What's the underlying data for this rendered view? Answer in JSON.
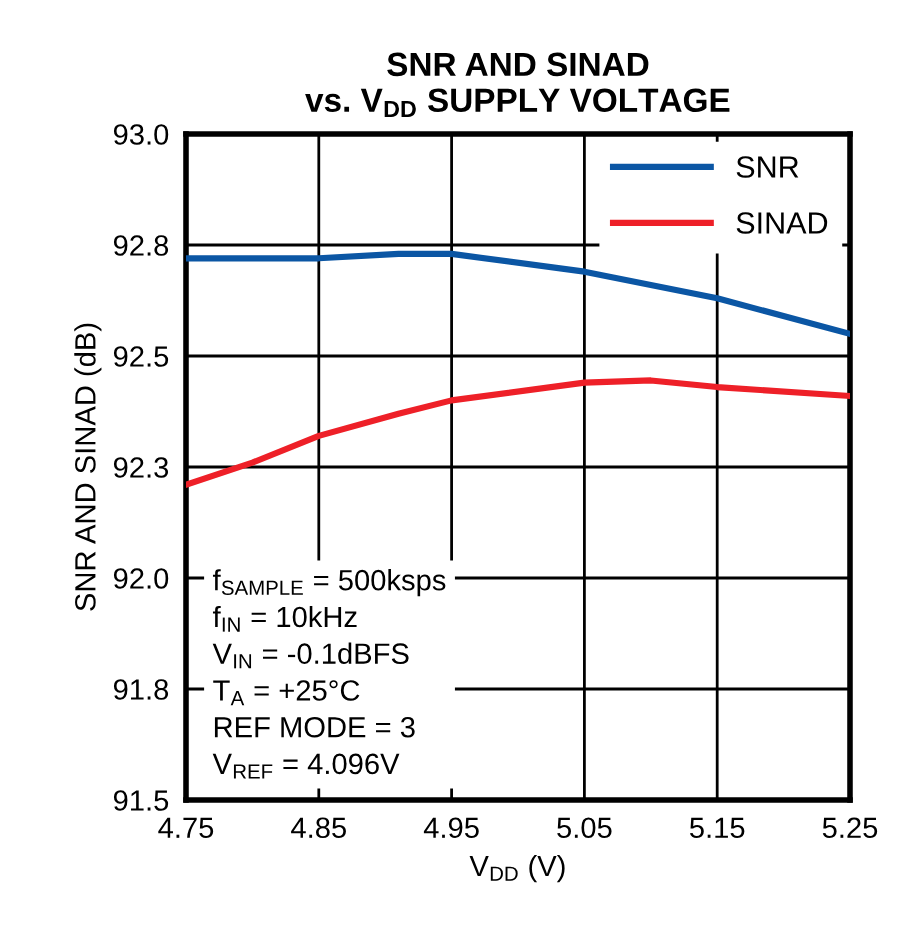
{
  "chart_data": {
    "type": "line",
    "title": "SNR AND SINAD\nvs. V$_{DD}$ SUPPLY VOLTAGE",
    "xlabel": "V$_{DD}$ (V)",
    "ylabel": "SNR AND SINAD (dB)",
    "x": [
      4.75,
      4.8,
      4.85,
      4.91,
      4.95,
      5.05,
      5.1,
      5.15,
      5.25
    ],
    "series": [
      {
        "name": "SNR",
        "color": "#0b56a4",
        "values": [
          92.72,
          92.72,
          92.72,
          92.73,
          92.73,
          92.69,
          92.66,
          92.63,
          92.55
        ]
      },
      {
        "name": "SINAD",
        "color": "#ee2028",
        "values": [
          92.21,
          92.26,
          92.32,
          92.37,
          92.4,
          92.44,
          92.445,
          92.43,
          92.41
        ]
      }
    ],
    "xlim": [
      4.75,
      5.25
    ],
    "xticks": [
      4.75,
      4.85,
      4.95,
      5.05,
      5.15,
      5.25
    ],
    "ylim": [
      91.5,
      93.0
    ],
    "yticks": [
      {
        "value": 93.0,
        "label": "93.0"
      },
      {
        "value": 92.75,
        "label": "92.8"
      },
      {
        "value": 92.5,
        "label": "92.5"
      },
      {
        "value": 92.25,
        "label": "92.3"
      },
      {
        "value": 92.0,
        "label": "92.0"
      },
      {
        "value": 91.75,
        "label": "91.8"
      },
      {
        "value": 91.5,
        "label": "91.5"
      }
    ],
    "grid": true,
    "legend": "top right",
    "line_style": "solid",
    "marker": "none",
    "annotations": [
      "f$_{SAMPLE}$ = 500ksps\nf$_{IN}$ = 10kHz\nV$_{IN}$ = -0.1dBFS\nT$_{A}$ = +25°C\nREF MODE = 3\nV$_{REF}$ = 4.096V"
    ]
  }
}
